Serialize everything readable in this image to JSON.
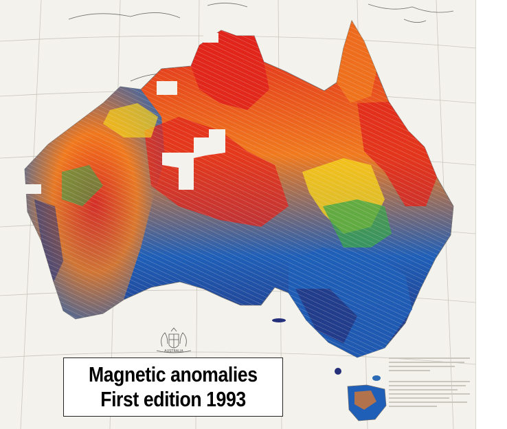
{
  "map": {
    "subject": "Magnetic anomalies",
    "region": "Australia",
    "colors": {
      "paper": "#f4f2ec",
      "graticule": "#c9c6be",
      "coastline": "#6e6e6e",
      "high_anomaly": "#e0241c",
      "mid_high": "#f07a1e",
      "mid": "#f5d21a",
      "mid_low": "#3aa54a",
      "low_anomaly": "#1f5fb8",
      "lowest": "#24307a",
      "relief_highlight": "#f1e6e0"
    }
  },
  "caption": {
    "line1": "Magnetic anomalies",
    "line2": "First edition 1993"
  },
  "crest": {
    "label": "AUSTRALIA"
  }
}
